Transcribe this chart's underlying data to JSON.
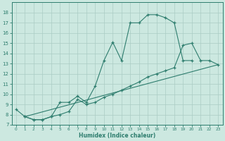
{
  "line1_x": [
    0,
    1,
    2,
    3,
    4,
    5,
    6,
    7,
    8,
    9,
    10,
    11,
    12,
    13,
    14,
    15,
    16,
    17,
    18,
    19,
    20
  ],
  "line1_y": [
    8.5,
    7.8,
    7.5,
    7.5,
    7.8,
    9.2,
    9.2,
    9.8,
    9.2,
    10.8,
    13.3,
    15.1,
    13.3,
    17.0,
    17.0,
    17.8,
    17.8,
    17.5,
    17.0,
    13.3,
    13.3
  ],
  "line2_x": [
    1,
    2,
    3,
    4,
    5,
    6,
    7,
    8,
    9,
    10,
    11,
    12,
    13,
    14,
    15,
    16,
    17,
    18,
    19,
    20,
    21,
    22,
    23
  ],
  "line2_y": [
    7.8,
    7.5,
    7.5,
    7.8,
    8.0,
    8.3,
    9.5,
    9.0,
    9.2,
    9.7,
    10.0,
    10.4,
    10.8,
    11.2,
    11.7,
    12.0,
    12.3,
    12.6,
    14.8,
    15.0,
    13.3,
    13.3,
    12.9
  ],
  "line3_x": [
    1,
    23
  ],
  "line3_y": [
    7.8,
    12.9
  ],
  "bg_color": "#cce8e0",
  "grid_color": "#aaccC4",
  "line_color": "#2e7d6e",
  "xlabel": "Humidex (Indice chaleur)",
  "xlim": [
    -0.5,
    23.5
  ],
  "ylim": [
    7,
    19
  ],
  "xticks": [
    0,
    1,
    2,
    3,
    4,
    5,
    6,
    7,
    8,
    9,
    10,
    11,
    12,
    13,
    14,
    15,
    16,
    17,
    18,
    19,
    20,
    21,
    22,
    23
  ],
  "yticks": [
    7,
    8,
    9,
    10,
    11,
    12,
    13,
    14,
    15,
    16,
    17,
    18
  ]
}
